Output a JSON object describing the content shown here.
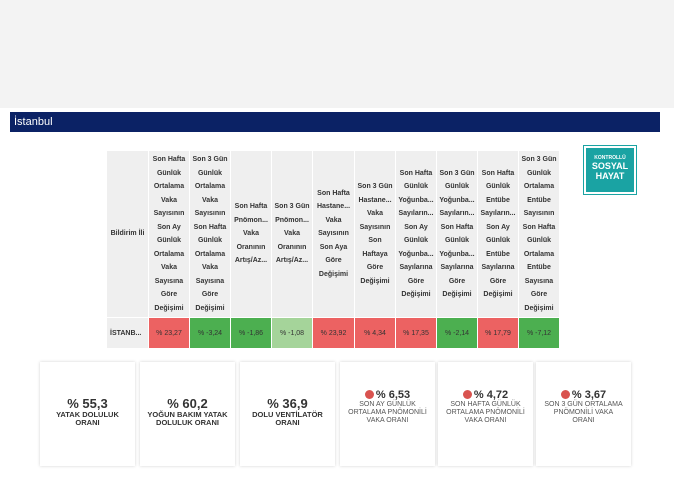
{
  "title": "İstanbul",
  "logo": {
    "line1": "KONTROLLÜ",
    "line2": "SOSYAL",
    "line3": "HAYAT"
  },
  "table": {
    "headers": [
      "Bildirim İli",
      "Son Hafta Günlük Ortalama Vaka Sayısının Son Ay Günlük Ortalama Vaka Sayısına Göre Değişimi",
      "Son 3 Gün Günlük Ortalama Vaka Sayısının Son Hafta Günlük Ortalama Vaka Sayısına Göre Değişimi",
      "Son Hafta Pnömon... Vaka Oranının Artış/Az...",
      "Son 3 Gün Pnömon... Vaka Oranının Artış/Az...",
      "Son Hafta Hastane... Vaka Sayısının Son Aya Göre Değişimi",
      "Son 3 Gün Hastane... Vaka Sayısının Son Haftaya Göre Değişimi",
      "Son Hafta Günlük Yoğunba... Sayıların... Son Ay Günlük Yoğunba... Sayılarına Göre Değişimi",
      "Son 3 Gün Günlük Yoğunba... Sayıların... Son Hafta Günlük Yoğunba... Sayılarına Göre Değişimi",
      "Son Hafta Günlük Entübe Sayıların... Son Ay Günlük Entübe Sayılarına Göre Değişimi",
      "Son 3 Gün Günlük Ortalama Entübe Sayısının Son Hafta Günlük Ortalama Entübe Sayısına Göre Değişimi"
    ],
    "row": {
      "label": "İSTANB...",
      "values": [
        "% 23,27",
        "% -3,24",
        "% -1,86",
        "% -1,08",
        "% 23,92",
        "% 4,34",
        "% 17,35",
        "% -2,14",
        "% 17,79",
        "% -7,12"
      ],
      "colors": [
        "pos",
        "neg-strong",
        "neg-strong",
        "neg-light",
        "pos",
        "pos",
        "pos",
        "neg-strong",
        "pos",
        "neg-strong"
      ]
    }
  },
  "cards": [
    {
      "value": "% 55,3",
      "label": "YATAK DOLULUK ORANI",
      "alert": false
    },
    {
      "value": "% 60,2",
      "label": "YOĞUN BAKIM YATAK DOLULUK ORANI",
      "alert": false
    },
    {
      "value": "% 36,9",
      "label": "DOLU VENTİLATÖR ORANI",
      "alert": false
    },
    {
      "value": "% 6,53",
      "label": "SON AY GÜNLÜK ORTALAMA PNÖMONİLİ VAKA ORANI",
      "alert": true
    },
    {
      "value": "% 4,72",
      "label": "SON HAFTA GÜNLÜK ORTALAMA PNÖMONİLİ VAKA ORANI",
      "alert": true
    },
    {
      "value": "% 3,67",
      "label": "SON 3 GÜN ORTALAMA PNÖMONİLİ VAKA ORANI",
      "alert": true
    }
  ]
}
